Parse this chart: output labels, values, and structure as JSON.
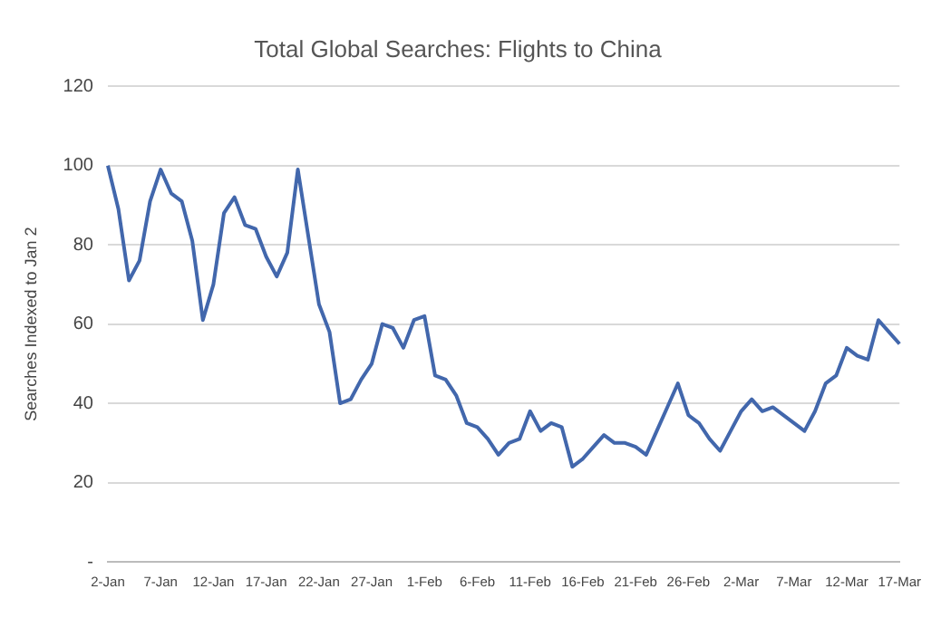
{
  "chart_data": {
    "type": "line",
    "title": "Total Global Searches: Flights to China",
    "ylabel": "Searches Indexed to Jan 2",
    "categories": [
      "2-Jan",
      null,
      null,
      null,
      null,
      "7-Jan",
      null,
      null,
      null,
      null,
      "12-Jan",
      null,
      null,
      null,
      null,
      "17-Jan",
      null,
      null,
      null,
      null,
      "22-Jan",
      null,
      null,
      null,
      null,
      "27-Jan",
      null,
      null,
      null,
      null,
      "1-Feb",
      null,
      null,
      null,
      null,
      "6-Feb",
      null,
      null,
      null,
      null,
      "11-Feb",
      null,
      null,
      null,
      null,
      "16-Feb",
      null,
      null,
      null,
      null,
      "21-Feb",
      null,
      null,
      null,
      null,
      "26-Feb",
      null,
      null,
      null,
      null,
      "2-Mar",
      null,
      null,
      null,
      null,
      "7-Mar",
      null,
      null,
      null,
      null,
      "12-Mar",
      null,
      null,
      null,
      null,
      "17-Mar"
    ],
    "series": [
      {
        "color": "#4267ac",
        "values": [
          100,
          89,
          71,
          76,
          91,
          99,
          93,
          91,
          81,
          61,
          70,
          88,
          92,
          85,
          84,
          77,
          72,
          78,
          99,
          82,
          65,
          58,
          40,
          41,
          46,
          50,
          60,
          59,
          54,
          61,
          62,
          47,
          46,
          42,
          35,
          34,
          31,
          27,
          30,
          31,
          38,
          33,
          35,
          34,
          24,
          26,
          29,
          32,
          30,
          30,
          29,
          27,
          33,
          39,
          45,
          37,
          35,
          31,
          28,
          33,
          38,
          41,
          38,
          39,
          37,
          35,
          33,
          38,
          45,
          47,
          54,
          52,
          51,
          61,
          58,
          55
        ]
      }
    ],
    "ylim": [
      0,
      120
    ],
    "yticks": [
      {
        "value": 0,
        "label": "-"
      },
      20,
      40,
      60,
      80,
      100,
      120
    ],
    "grid": "y",
    "legend": false,
    "marker": "none",
    "line_style": "solid"
  }
}
